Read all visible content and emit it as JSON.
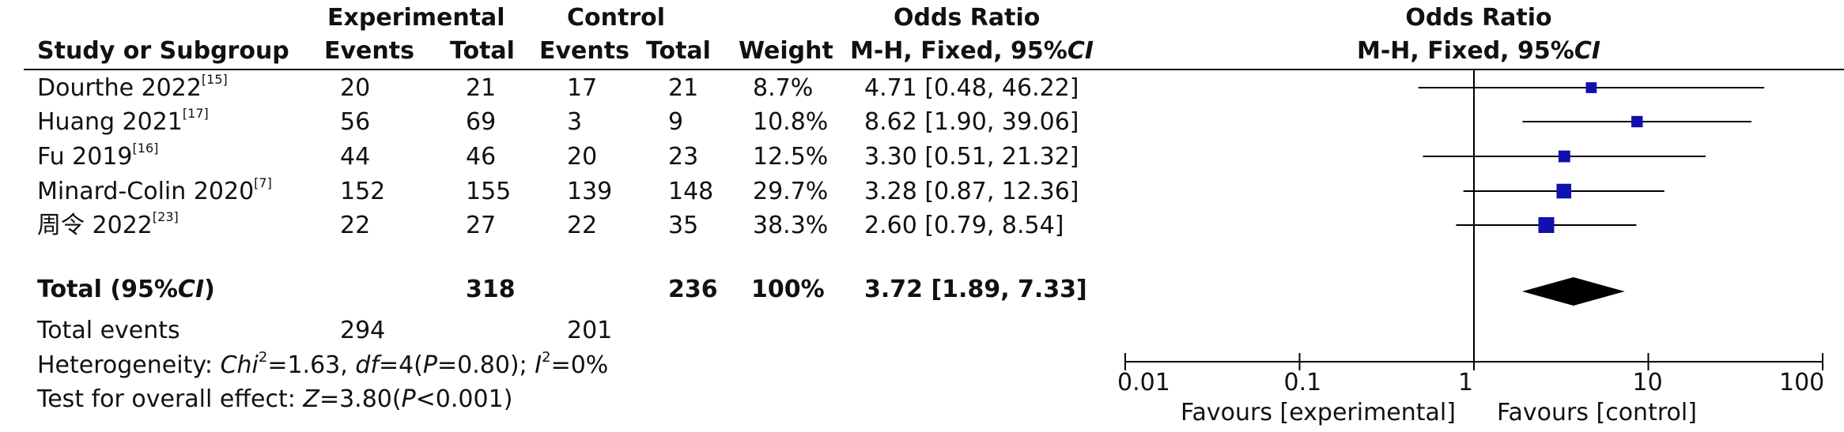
{
  "header": {
    "experimental": "Experimental",
    "control": "Control",
    "odds_ratio": "Odds Ratio",
    "study_col": "Study or Subgroup",
    "events": "Events",
    "total": "Total",
    "weight": "Weight",
    "method_prefix": "M-H, Fixed, 95%",
    "method_ci": "CI"
  },
  "studies": [
    {
      "name": "Dourthe 2022",
      "ref": "[15]",
      "exp_events": "20",
      "exp_total": "21",
      "ctl_events": "17",
      "ctl_total": "21",
      "weight": "8.7%",
      "or_text": "4.71 [0.48, 46.22]"
    },
    {
      "name": "Huang 2021",
      "ref": "[17]",
      "exp_events": "56",
      "exp_total": "69",
      "ctl_events": "3",
      "ctl_total": "9",
      "weight": "10.8%",
      "or_text": "8.62 [1.90, 39.06]"
    },
    {
      "name": "Fu 2019",
      "ref": "[16]",
      "exp_events": "44",
      "exp_total": "46",
      "ctl_events": "20",
      "ctl_total": "23",
      "weight": "12.5%",
      "or_text": "3.30 [0.51, 21.32]"
    },
    {
      "name": "Minard-Colin 2020",
      "ref": "[7]",
      "exp_events": "152",
      "exp_total": "155",
      "ctl_events": "139",
      "ctl_total": "148",
      "weight": "29.7%",
      "or_text": "3.28 [0.87, 12.36]"
    },
    {
      "name": "周令 2022",
      "ref": "[23]",
      "exp_events": "22",
      "exp_total": "27",
      "ctl_events": "22",
      "ctl_total": "35",
      "weight": "38.3%",
      "or_text": "2.60 [0.79, 8.54]"
    }
  ],
  "total_row": {
    "label_prefix": "Total (95%",
    "label_ci": "CI",
    "label_suffix": ")",
    "exp_total": "318",
    "ctl_total": "236",
    "weight": "100%",
    "or_text": "3.72 [1.89, 7.33]"
  },
  "total_events": {
    "label": "Total events",
    "exp": "294",
    "ctl": "201"
  },
  "heterogeneity": {
    "label": "Heterogeneity: ",
    "chi": "Chi",
    "chi_sup": "2",
    "chi_val": "=1.63, ",
    "df": "df",
    "df_val": "=4(",
    "p": "P",
    "p_val": "=0.80); ",
    "i": "I",
    "i_sup": "2",
    "i_val": "=0%"
  },
  "overall_effect": {
    "label": "Test for overall effect: ",
    "z": "Z",
    "z_val": "=3.80(",
    "p": "P",
    "p_val": "<0.001)"
  },
  "chart_data": {
    "type": "forest",
    "title": "Odds Ratio",
    "subtitle": "M-H, Fixed, 95%CI",
    "xscale": "log",
    "xlim": [
      0.01,
      100
    ],
    "ticks": [
      0.01,
      0.1,
      1,
      10,
      100
    ],
    "tick_labels": [
      "0.01",
      "0.1",
      "1",
      "10",
      "100"
    ],
    "favours_left": "Favours [experimental]",
    "favours_right": "Favours [control]",
    "points": [
      {
        "or": 4.71,
        "lo": 0.48,
        "hi": 46.22,
        "weight": 8.7
      },
      {
        "or": 8.62,
        "lo": 1.9,
        "hi": 39.06,
        "weight": 10.8
      },
      {
        "or": 3.3,
        "lo": 0.51,
        "hi": 21.32,
        "weight": 12.5
      },
      {
        "or": 3.28,
        "lo": 0.87,
        "hi": 12.36,
        "weight": 29.7
      },
      {
        "or": 2.6,
        "lo": 0.79,
        "hi": 8.54,
        "weight": 38.3
      }
    ],
    "pooled": {
      "or": 3.72,
      "lo": 1.89,
      "hi": 7.33
    },
    "colors": {
      "square": "#1010b0",
      "diamond": "#000000",
      "line": "#000000"
    }
  }
}
